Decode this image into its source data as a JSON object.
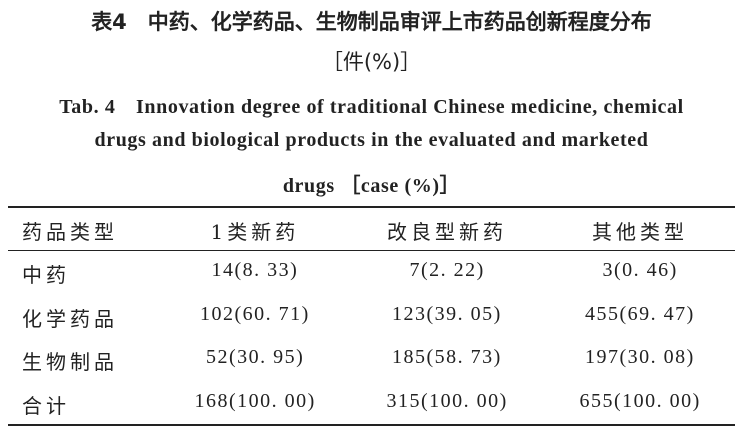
{
  "title_cn": [
    "表4　中药、化学药品、生物制品审评上市药品创新程度分布",
    "［件(%)］"
  ],
  "title_en": [
    "Tab. 4　Innovation degree of traditional Chinese medicine, chemical",
    "drugs and biological products in the evaluated and marketed",
    "drugs ［case (%)］"
  ],
  "table": {
    "header": [
      "药品类型",
      "1类新药",
      "改良型新药",
      "其他类型"
    ],
    "rows": [
      [
        "中药",
        "14(8. 33)",
        "7(2. 22)",
        "3(0. 46)"
      ],
      [
        "化学药品",
        "102(60. 71)",
        "123(39. 05)",
        "455(69. 47)"
      ],
      [
        "生物制品",
        "52(30. 95)",
        "185(58. 73)",
        "197(30. 08)"
      ],
      [
        "合计",
        "168(100. 00)",
        "315(100. 00)",
        "655(100. 00)"
      ]
    ]
  }
}
